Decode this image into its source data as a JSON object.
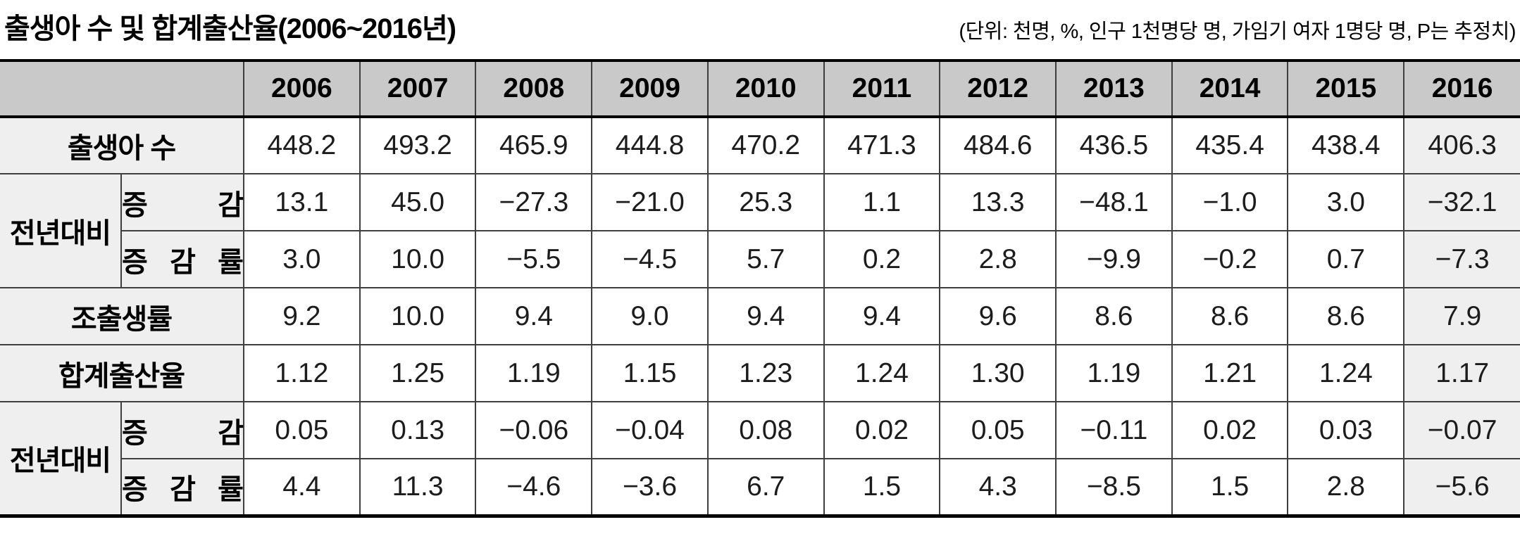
{
  "title": "출생아 수 및 합계출산율(2006~2016년)",
  "unit_note": "(단위: 천명, %, 인구 1천명당 명, 가임기 여자 1명당 명, P는 추정치)",
  "colors": {
    "header_bg": "#c9c9c9",
    "label_bg": "#efefef",
    "estimate_column_bg": "#efefef",
    "grid_line": "#3f3f3f",
    "strong_line": "#000000"
  },
  "table": {
    "years": [
      "2006",
      "2007",
      "2008",
      "2009",
      "2010",
      "2011",
      "2012",
      "2013",
      "2014",
      "2015",
      "2016"
    ],
    "estimate_year_index": 10,
    "rows": {
      "births": {
        "label": "출생아 수",
        "values": [
          "448.2",
          "493.2",
          "465.9",
          "444.8",
          "470.2",
          "471.3",
          "484.6",
          "436.5",
          "435.4",
          "438.4",
          "406.3"
        ]
      },
      "yoy_births": {
        "label": "전년대비",
        "change_label": "증 감",
        "rate_label": "증 감 률",
        "change": [
          "13.1",
          "45.0",
          "−27.3",
          "−21.0",
          "25.3",
          "1.1",
          "13.3",
          "−48.1",
          "−1.0",
          "3.0",
          "−32.1"
        ],
        "rate": [
          "3.0",
          "10.0",
          "−5.5",
          "−4.5",
          "5.7",
          "0.2",
          "2.8",
          "−9.9",
          "−0.2",
          "0.7",
          "−7.3"
        ]
      },
      "crude_birth_rate": {
        "label": "조출생률",
        "values": [
          "9.2",
          "10.0",
          "9.4",
          "9.0",
          "9.4",
          "9.4",
          "9.6",
          "8.6",
          "8.6",
          "8.6",
          "7.9"
        ]
      },
      "tfr": {
        "label": "합계출산율",
        "values": [
          "1.12",
          "1.25",
          "1.19",
          "1.15",
          "1.23",
          "1.24",
          "1.30",
          "1.19",
          "1.21",
          "1.24",
          "1.17"
        ]
      },
      "yoy_tfr": {
        "label": "전년대비",
        "change_label": "증 감",
        "rate_label": "증 감 률",
        "change": [
          "0.05",
          "0.13",
          "−0.06",
          "−0.04",
          "0.08",
          "0.02",
          "0.05",
          "−0.11",
          "0.02",
          "0.03",
          "−0.07"
        ],
        "rate": [
          "4.4",
          "11.3",
          "−4.6",
          "−3.6",
          "6.7",
          "1.5",
          "4.3",
          "−8.5",
          "1.5",
          "2.8",
          "−5.6"
        ]
      }
    }
  }
}
